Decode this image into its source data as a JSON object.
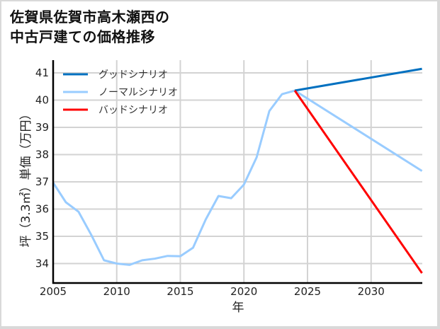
{
  "title_line1": "佐賀県佐賀市高木瀬西の",
  "title_line2": "中古戸建ての価格推移",
  "chart_data": {
    "type": "line",
    "title": "佐賀県佐賀市高木瀬西の中古戸建ての価格推移",
    "xlabel": "年",
    "ylabel": "坪（3.3㎡）単価（万円）",
    "xlim": [
      2005,
      2034
    ],
    "ylim": [
      33.3,
      41.3
    ],
    "xticks": [
      2005,
      2010,
      2015,
      2020,
      2025,
      2030
    ],
    "yticks": [
      34,
      35,
      36,
      37,
      38,
      39,
      40,
      41
    ],
    "grid": true,
    "legend_position": "upper left",
    "series": [
      {
        "name": "グッドシナリオ",
        "color": "#0070c0",
        "x": [
          2024,
          2034
        ],
        "values": [
          40.35,
          41.15
        ]
      },
      {
        "name": "ノーマルシナリオ",
        "color": "#99ccff",
        "x": [
          2005,
          2006,
          2007,
          2008,
          2009,
          2010,
          2011,
          2012,
          2013,
          2014,
          2015,
          2016,
          2017,
          2018,
          2019,
          2020,
          2021,
          2022,
          2023,
          2024,
          2034
        ],
        "values": [
          36.97,
          36.25,
          35.9,
          35.05,
          34.12,
          34.0,
          33.95,
          34.12,
          34.18,
          34.28,
          34.27,
          34.58,
          35.62,
          36.48,
          36.4,
          36.9,
          37.9,
          39.6,
          40.22,
          40.35,
          37.4
        ]
      },
      {
        "name": "バッドシナリオ",
        "color": "#ff0000",
        "x": [
          2024,
          2034
        ],
        "values": [
          40.35,
          33.65
        ]
      }
    ]
  }
}
